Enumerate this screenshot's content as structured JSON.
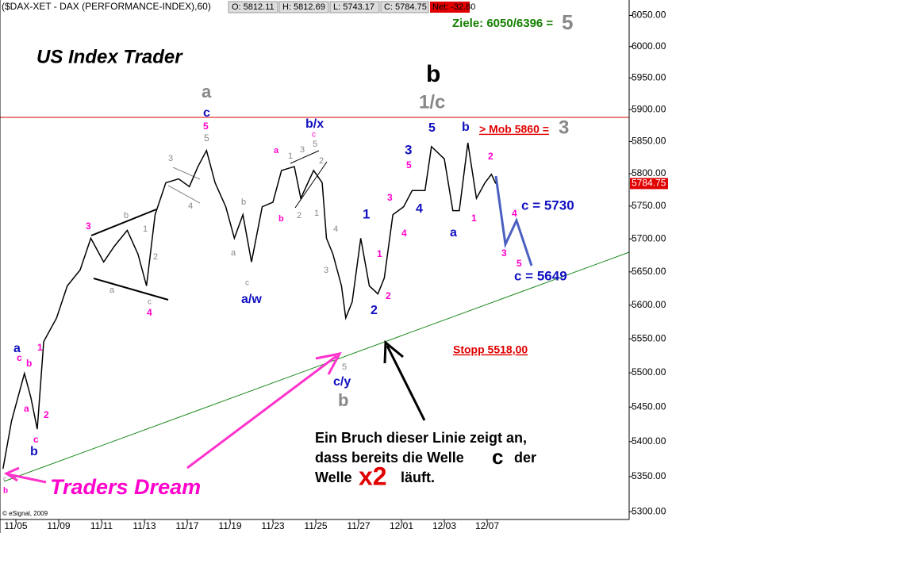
{
  "chart_data": {
    "type": "line",
    "log_scale": true,
    "header": {
      "symbol": "($DAX-XET - DAX (PERFORMANCE-INDEX),60)",
      "open": "O: 5812.11",
      "high": "H: 5812.69",
      "low": "L: 5743.17",
      "close": "C: 5784.75",
      "net": "Net: -32.80"
    },
    "copyright": "© eSignal, 2009",
    "x": [
      -0.6,
      -0.2,
      0.4,
      0.7,
      1.0,
      1.3,
      1.9,
      2.4,
      3.0,
      3.5,
      4.1,
      4.6,
      5.2,
      5.7,
      6.1,
      6.5,
      7.0,
      7.6,
      8.1,
      8.5,
      8.9,
      9.3,
      9.8,
      10.2,
      10.6,
      11.0,
      11.5,
      12.0,
      12.4,
      13.0,
      13.3,
      13.9,
      14.3,
      14.5,
      14.8,
      15.2,
      15.4,
      15.7,
      16.1,
      16.5,
      16.9,
      17.2,
      17.6,
      18.1,
      18.5,
      19.1,
      19.4,
      20.0,
      20.4,
      20.7,
      21.1,
      21.5,
      21.9,
      22.2,
      22.4
    ],
    "values": [
      5361,
      5430,
      5499,
      5464,
      5418,
      5546,
      5581,
      5629,
      5653,
      5701,
      5665,
      5689,
      5713,
      5677,
      5629,
      5737,
      5786,
      5792,
      5780,
      5811,
      5836,
      5786,
      5749,
      5701,
      5737,
      5665,
      5749,
      5756,
      5805,
      5811,
      5762,
      5805,
      5786,
      5701,
      5677,
      5629,
      5581,
      5605,
      5701,
      5629,
      5617,
      5641,
      5737,
      5749,
      5774,
      5774,
      5842,
      5823,
      5743,
      5743,
      5848,
      5762,
      5786,
      5799,
      5784.75
    ],
    "color": "#000000",
    "price_tag": 5784.75,
    "xlim": [
      -0.74,
      28.63
    ],
    "xticks": [
      {
        "value": 0,
        "label": "11/05"
      },
      {
        "value": 2,
        "label": "11/09"
      },
      {
        "value": 4,
        "label": "11/11"
      },
      {
        "value": 6,
        "label": "11/13"
      },
      {
        "value": 8,
        "label": "11/17"
      },
      {
        "value": 10,
        "label": "11/19"
      },
      {
        "value": 12,
        "label": "11/23"
      },
      {
        "value": 14,
        "label": "11/25"
      },
      {
        "value": 16,
        "label": "11/27"
      },
      {
        "value": 18,
        "label": "12/01"
      },
      {
        "value": 20,
        "label": "12/03"
      },
      {
        "value": 22,
        "label": "12/07"
      }
    ],
    "ylim": [
      5289,
      6075
    ],
    "yticks": [
      {
        "value": 5300,
        "label": "5300.00"
      },
      {
        "value": 5350,
        "label": "5350.00"
      },
      {
        "value": 5400,
        "label": "5400.00"
      },
      {
        "value": 5450,
        "label": "5450.00"
      },
      {
        "value": 5500,
        "label": "5500.00"
      },
      {
        "value": 5550,
        "label": "5550.00"
      },
      {
        "value": 5600,
        "label": "5600.00"
      },
      {
        "value": 5650,
        "label": "5650.00"
      },
      {
        "value": 5700,
        "label": "5700.00"
      },
      {
        "value": 5750,
        "label": "5750.00"
      },
      {
        "value": 5800,
        "label": "5800.00"
      },
      {
        "value": 5850,
        "label": "5850.00"
      },
      {
        "value": 5900,
        "label": "5900.00"
      },
      {
        "value": 5950,
        "label": "5950.00"
      },
      {
        "value": 6000,
        "label": "6000.00"
      },
      {
        "value": 6050,
        "label": "6050.00"
      }
    ],
    "annotations": [
      "Ziele: 6050/6396 =",
      "5",
      "US Index Trader",
      "b",
      "1/c",
      "a",
      "c",
      "5",
      "5",
      "b/x",
      "> Mob 5860 =",
      "3",
      "5",
      "b",
      "2",
      "c = 5730",
      "4",
      "3",
      "5",
      "c = 5649",
      "1",
      "a",
      "3",
      "5",
      "4",
      "3",
      "4",
      "1",
      "1",
      "2",
      "2",
      "Stopp 5518,00",
      "c/y",
      "b",
      "5",
      "a/w",
      "3",
      "4",
      "a",
      "c",
      "b",
      "1",
      "a",
      "2",
      "c",
      "b",
      "Traders Dream",
      "Ein Bruch dieser Linie zeigt an,",
      "dass bereits die Welle",
      "c",
      "der",
      "Welle",
      "x2",
      "läuft.",
      "3",
      "4",
      "b",
      "1",
      "2",
      "a",
      "c",
      "b",
      "a",
      "c",
      "a",
      "b",
      "1",
      "3",
      "c",
      "5",
      "2",
      "1",
      "2",
      "3",
      "4",
      "c",
      "b"
    ]
  }
}
